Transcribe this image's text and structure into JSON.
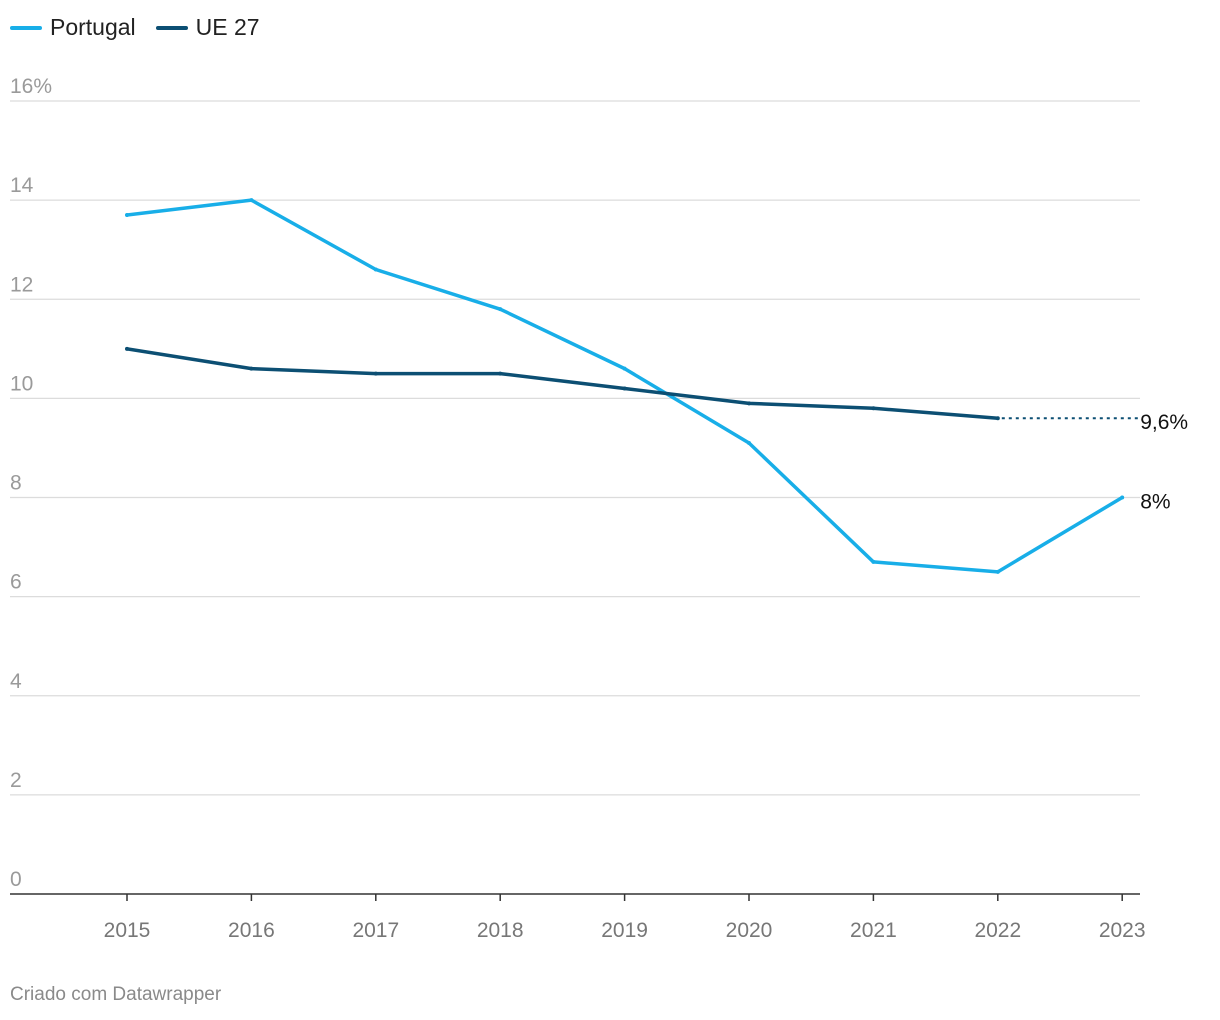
{
  "legend": [
    {
      "label": "Portugal",
      "color": "#18aee8"
    },
    {
      "label": "UE 27",
      "color": "#0c4f73"
    }
  ],
  "footer": "Criado com Datawrapper",
  "chart_data": {
    "type": "line",
    "x": [
      2015,
      2016,
      2017,
      2018,
      2019,
      2020,
      2021,
      2022,
      2023
    ],
    "ylim": [
      0,
      16
    ],
    "ytick_labels": [
      "0",
      "2",
      "4",
      "6",
      "8",
      "10",
      "12",
      "14",
      "16%"
    ],
    "yticks": [
      0,
      2,
      4,
      6,
      8,
      10,
      12,
      14,
      16
    ],
    "xtick_labels": [
      "2015",
      "2016",
      "2017",
      "2018",
      "2019",
      "2020",
      "2021",
      "2022",
      "2023"
    ],
    "grid": true,
    "series": [
      {
        "name": "Portugal",
        "color": "#18aee8",
        "values": [
          13.7,
          14.0,
          12.6,
          11.8,
          10.6,
          9.1,
          6.7,
          6.5,
          8.0
        ],
        "end_label": "8%"
      },
      {
        "name": "UE 27",
        "color": "#0c4f73",
        "values": [
          11.0,
          10.6,
          10.5,
          10.5,
          10.2,
          9.9,
          9.8,
          9.6,
          null
        ],
        "dotted_extension_to": 2023,
        "end_label": "9,6%"
      }
    ]
  }
}
